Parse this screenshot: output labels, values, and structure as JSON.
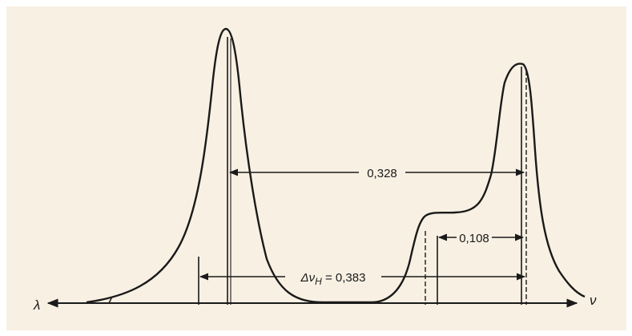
{
  "diagram": {
    "axis_left_label": "λ",
    "axis_right_label": "ν",
    "measurements": {
      "peak_separation": "0,328",
      "shoulder_separation": "0,108",
      "delta_prefix": "Δν",
      "delta_subscript": "H",
      "delta_value": " = 0,383"
    },
    "colors": {
      "background": "#f8f0e3",
      "ink": "#1a1a1a"
    }
  }
}
